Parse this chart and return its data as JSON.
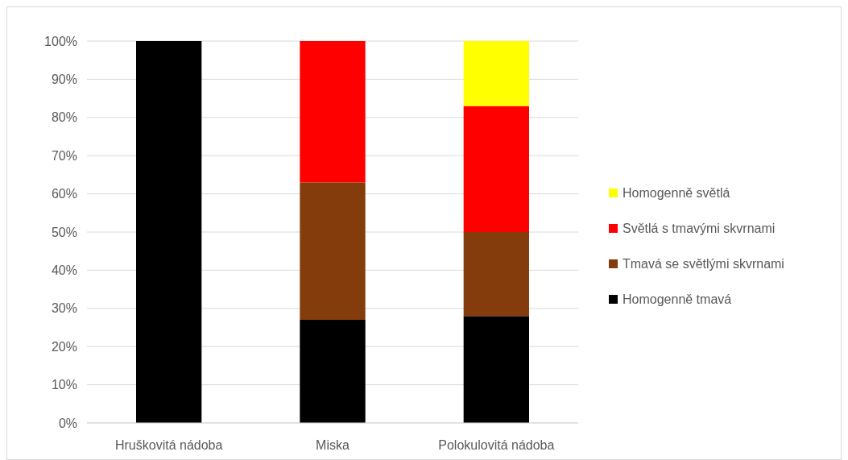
{
  "chart_data": {
    "type": "bar",
    "stacked": true,
    "categories": [
      "Hruškovitá nádoba",
      "Miska",
      "Polokulovitá nádoba"
    ],
    "series": [
      {
        "name": "Homogenně tmavá",
        "color": "#000000",
        "values": [
          100,
          27,
          28
        ]
      },
      {
        "name": "Tmavá se světlými skvrnami",
        "color": "#843c0c",
        "values": [
          0,
          36,
          22
        ]
      },
      {
        "name": "Světlá s tmavými skvrnami",
        "color": "#ff0000",
        "values": [
          0,
          37,
          33
        ]
      },
      {
        "name": "Homogenně světlá",
        "color": "#ffff00",
        "values": [
          0,
          0,
          17
        ]
      }
    ],
    "ylim": [
      0,
      100
    ],
    "yticks": [
      {
        "value": 0,
        "label": "0%"
      },
      {
        "value": 10,
        "label": "10%"
      },
      {
        "value": 20,
        "label": "20%"
      },
      {
        "value": 30,
        "label": "30%"
      },
      {
        "value": 40,
        "label": "40%"
      },
      {
        "value": 50,
        "label": "50%"
      },
      {
        "value": 60,
        "label": "60%"
      },
      {
        "value": 70,
        "label": "70%"
      },
      {
        "value": 80,
        "label": "80%"
      },
      {
        "value": 90,
        "label": "90%"
      },
      {
        "value": 100,
        "label": "100%"
      }
    ],
    "grid": "y",
    "legend": "right"
  }
}
